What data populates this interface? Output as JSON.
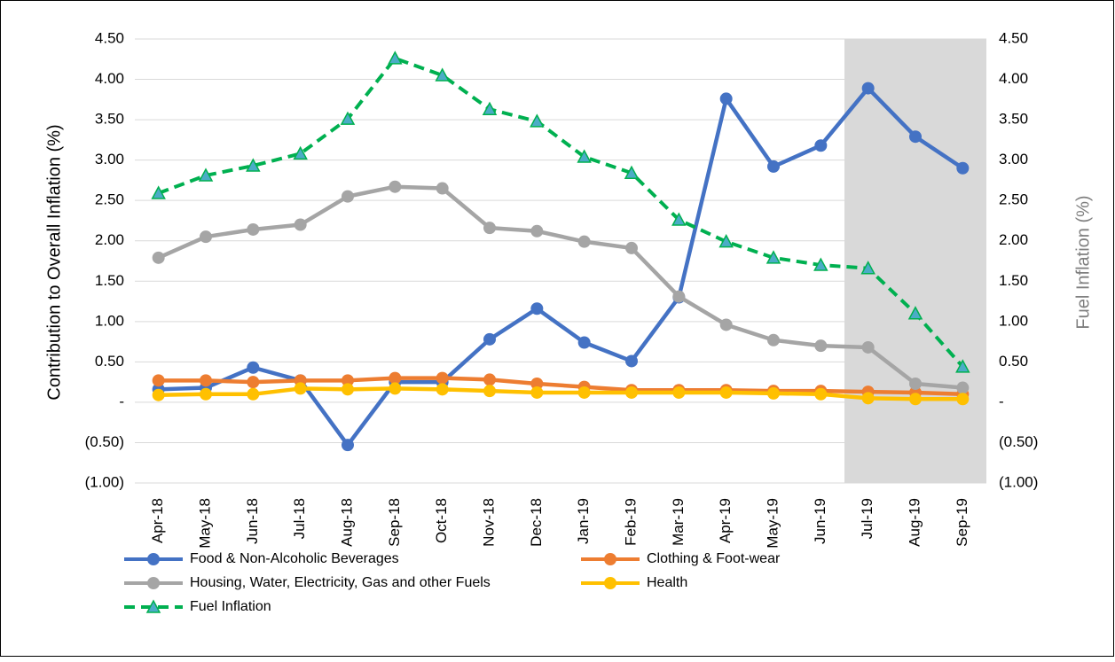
{
  "chart_data": {
    "type": "line",
    "y_label": "Contribution to Overall Inflation (%)",
    "y2_label": "Fuel Inflation (%)",
    "categories": [
      "Apr-18",
      "May-18",
      "Jun-18",
      "Jul-18",
      "Aug-18",
      "Sep-18",
      "Oct-18",
      "Nov-18",
      "Dec-18",
      "Jan-19",
      "Feb-19",
      "Mar-19",
      "Apr-19",
      "May-19",
      "Jun-19",
      "Jul-19",
      "Aug-19",
      "Sep-19"
    ],
    "shade_start": "Jul-19",
    "shade_color": "#d9d9d9",
    "grid": true,
    "ylim": [
      -1,
      4.5
    ],
    "yticks": [
      {
        "value": -1,
        "label": "(1.00)"
      },
      {
        "value": -0.5,
        "label": "(0.50)"
      },
      {
        "value": 0,
        "label": "-"
      },
      {
        "value": 0.5,
        "label": "0.50"
      },
      {
        "value": 1,
        "label": "1.00"
      },
      {
        "value": 1.5,
        "label": "1.50"
      },
      {
        "value": 2,
        "label": "2.00"
      },
      {
        "value": 2.5,
        "label": "2.50"
      },
      {
        "value": 3,
        "label": "3.00"
      },
      {
        "value": 3.5,
        "label": "3.50"
      },
      {
        "value": 4,
        "label": "4.00"
      },
      {
        "value": 4.5,
        "label": "4.50"
      }
    ],
    "y2lim": [
      -1,
      4.5
    ],
    "y2ticks": [
      {
        "value": -1,
        "label": "(1.00)"
      },
      {
        "value": -0.5,
        "label": "(0.50)"
      },
      {
        "value": 0,
        "label": "-"
      },
      {
        "value": 0.5,
        "label": "0.50"
      },
      {
        "value": 1,
        "label": "1.00"
      },
      {
        "value": 1.5,
        "label": "1.50"
      },
      {
        "value": 2,
        "label": "2.00"
      },
      {
        "value": 2.5,
        "label": "2.50"
      },
      {
        "value": 3,
        "label": "3.00"
      },
      {
        "value": 3.5,
        "label": "3.50"
      },
      {
        "value": 4,
        "label": "4.00"
      },
      {
        "value": 4.5,
        "label": "4.50"
      }
    ],
    "series": [
      {
        "name": "Food & Non-Alcoholic Beverages",
        "color": "#4472c4",
        "marker": "circle",
        "dashed": false,
        "values": [
          0.16,
          0.18,
          0.43,
          0.27,
          -0.53,
          0.25,
          0.25,
          0.78,
          1.16,
          0.74,
          0.51,
          1.3,
          3.76,
          2.92,
          3.18,
          3.89,
          3.29,
          2.9
        ]
      },
      {
        "name": "Clothing & Foot-wear",
        "color": "#ed7d31",
        "marker": "circle",
        "dashed": false,
        "values": [
          0.27,
          0.27,
          0.25,
          0.27,
          0.27,
          0.3,
          0.3,
          0.28,
          0.23,
          0.19,
          0.15,
          0.15,
          0.15,
          0.14,
          0.14,
          0.13,
          0.12,
          0.1
        ]
      },
      {
        "name": "Housing, Water, Electricity, Gas and other Fuels",
        "color": "#a5a5a5",
        "marker": "circle",
        "dashed": false,
        "values": [
          1.79,
          2.05,
          2.14,
          2.2,
          2.55,
          2.67,
          2.65,
          2.16,
          2.12,
          1.99,
          1.91,
          1.31,
          0.96,
          0.77,
          0.7,
          0.68,
          0.23,
          0.18
        ]
      },
      {
        "name": "Health",
        "color": "#ffc000",
        "marker": "circle",
        "dashed": false,
        "values": [
          0.09,
          0.1,
          0.1,
          0.17,
          0.16,
          0.17,
          0.16,
          0.14,
          0.12,
          0.12,
          0.12,
          0.12,
          0.12,
          0.11,
          0.1,
          0.05,
          0.04,
          0.04
        ]
      },
      {
        "name": "Fuel Inflation",
        "color": "#00b050",
        "marker_color": "#4bacc6",
        "marker": "triangle",
        "dashed": true,
        "axis": "y2",
        "values": [
          2.59,
          2.81,
          2.93,
          3.08,
          3.51,
          4.26,
          4.05,
          3.63,
          3.48,
          3.04,
          2.84,
          2.26,
          1.99,
          1.79,
          1.7,
          1.66,
          1.1,
          0.44
        ]
      }
    ]
  }
}
